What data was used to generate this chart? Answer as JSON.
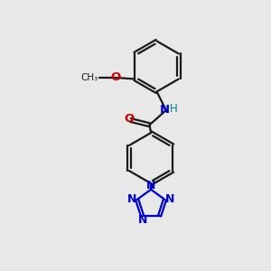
{
  "background_color": "#e8e8e8",
  "bond_color": "#1a1a1a",
  "nitrogen_color": "#0000cc",
  "oxygen_color": "#cc0000",
  "nh_color": "#008080",
  "line_width": 1.6,
  "fig_w": 3.0,
  "fig_h": 3.0,
  "dpi": 100,
  "xlim": [
    0,
    10
  ],
  "ylim": [
    0,
    10
  ]
}
